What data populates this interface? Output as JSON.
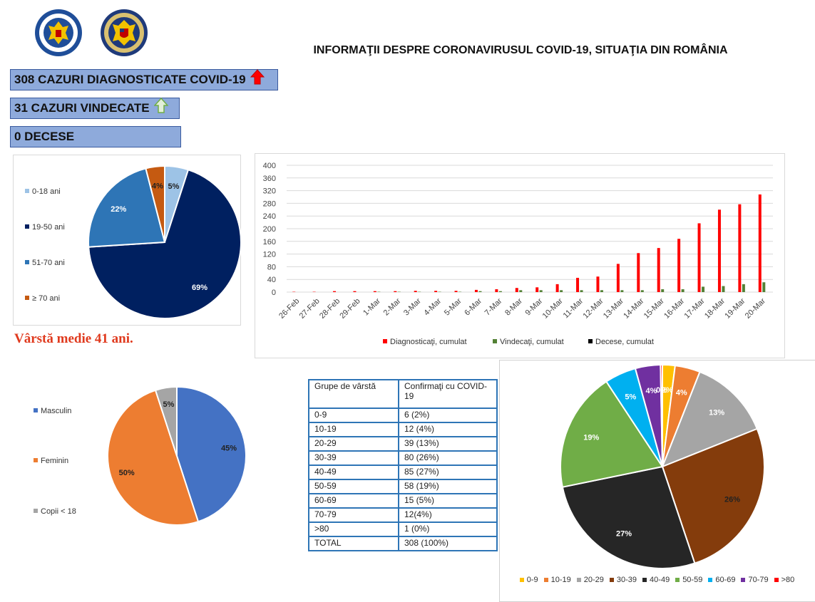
{
  "header": {
    "title": "INFORMAŢII DESPRE CORONAVIRUSUL COVID-19, SITUAŢIA DIN ROMÂNIA",
    "logo_left_text": "GUVERNUL ROMÂNIEI",
    "logo_right_text": "MINISTERUL AFACERILOR INTERNE"
  },
  "stats": {
    "diagnosed": "308 CAZURI DIAGNOSTICATE COVID-19",
    "recovered": "31 CAZURI VINDECATE",
    "deaths": "0 DECESE"
  },
  "median_age": "Vârstă medie 41 ani.",
  "table": {
    "header_group": "Grupe de vârstă",
    "header_confirmed": "Confirmaţi cu COVID-19",
    "rows": [
      {
        "group": "0-9",
        "value": "6 (2%)"
      },
      {
        "group": "10-19",
        "value": "12 (4%)"
      },
      {
        "group": "20-29",
        "value": "39 (13%)"
      },
      {
        "group": "30-39",
        "value": "80 (26%)"
      },
      {
        "group": "40-49",
        "value": "85 (27%)"
      },
      {
        "group": "50-59",
        "value": "58 (19%)"
      },
      {
        "group": "60-69",
        "value": "15 (5%)"
      },
      {
        "group": "70-79",
        "value": "12(4%)"
      },
      {
        "group": ">80",
        "value": "1 (0%)"
      },
      {
        "group": "TOTAL",
        "value": "308 (100%)"
      }
    ]
  },
  "chart_data": [
    {
      "type": "pie",
      "labels": [
        "0-18 ani",
        "19-50 ani",
        "51-70 ani",
        "≥ 70 ani"
      ],
      "values": [
        5,
        69,
        22,
        4
      ],
      "data_labels": [
        "5%",
        "69%",
        "22%",
        "4%"
      ],
      "colors": [
        "#9dc3e6",
        "#002060",
        "#2e75b6",
        "#c55a11"
      ],
      "legend": "left"
    },
    {
      "type": "bar",
      "categories": [
        "26-Feb",
        "27-Feb",
        "28-Feb",
        "29-Feb",
        "1-Mar",
        "2-Mar",
        "3-Mar",
        "4-Mar",
        "5-Mar",
        "6-Mar",
        "7-Mar",
        "8-Mar",
        "9-Mar",
        "10-Mar",
        "11-Mar",
        "12-Mar",
        "13-Mar",
        "14-Mar",
        "15-Mar",
        "16-Mar",
        "17-Mar",
        "18-Mar",
        "19-Mar",
        "20-Mar"
      ],
      "series": [
        {
          "name": "Diagnosticaţi, cumulat",
          "color": "#ff0000",
          "values": [
            1,
            1,
            3,
            3,
            3,
            3,
            4,
            4,
            4,
            7,
            9,
            13,
            15,
            25,
            45,
            49,
            89,
            123,
            139,
            168,
            217,
            260,
            277,
            308
          ]
        },
        {
          "name": "Vindecaţi, cumulat",
          "color": "#538135",
          "values": [
            0,
            0,
            0,
            0,
            1,
            1,
            1,
            1,
            1,
            3,
            3,
            6,
            6,
            6,
            6,
            6,
            6,
            6,
            9,
            9,
            17,
            19,
            25,
            31
          ]
        },
        {
          "name": "Decese, cumulat",
          "color": "#000000",
          "values": [
            0,
            0,
            0,
            0,
            0,
            0,
            0,
            0,
            0,
            0,
            0,
            0,
            0,
            0,
            0,
            0,
            0,
            0,
            0,
            0,
            0,
            0,
            0,
            0
          ]
        }
      ],
      "ylim": [
        0,
        400
      ],
      "yticks": [
        0,
        40,
        80,
        120,
        160,
        200,
        240,
        280,
        320,
        360,
        400
      ],
      "grid": true,
      "legend": "bottom"
    },
    {
      "type": "pie",
      "labels": [
        "Masculin",
        "Feminin",
        "Copii < 18"
      ],
      "values": [
        45,
        50,
        5
      ],
      "data_labels": [
        "45%",
        "50%",
        "5%"
      ],
      "colors": [
        "#4472c4",
        "#ed7d31",
        "#a5a5a5"
      ],
      "legend": "left"
    },
    {
      "type": "pie",
      "labels": [
        "0-9",
        "10-19",
        "20-29",
        "30-39",
        "40-49",
        "50-59",
        "60-69",
        "70-79",
        ">80"
      ],
      "values": [
        2,
        4,
        13,
        26,
        27,
        19,
        5,
        4,
        0.3
      ],
      "data_labels": [
        "2%",
        "4%",
        "13%",
        "26%",
        "27%",
        "19%",
        "5%",
        "4%",
        "0%"
      ],
      "colors": [
        "#ffc000",
        "#ed7d31",
        "#a5a5a5",
        "#843c0c",
        "#262626",
        "#70ad47",
        "#00b0f0",
        "#7030a0",
        "#ff0000"
      ],
      "legend": "bottom"
    }
  ]
}
